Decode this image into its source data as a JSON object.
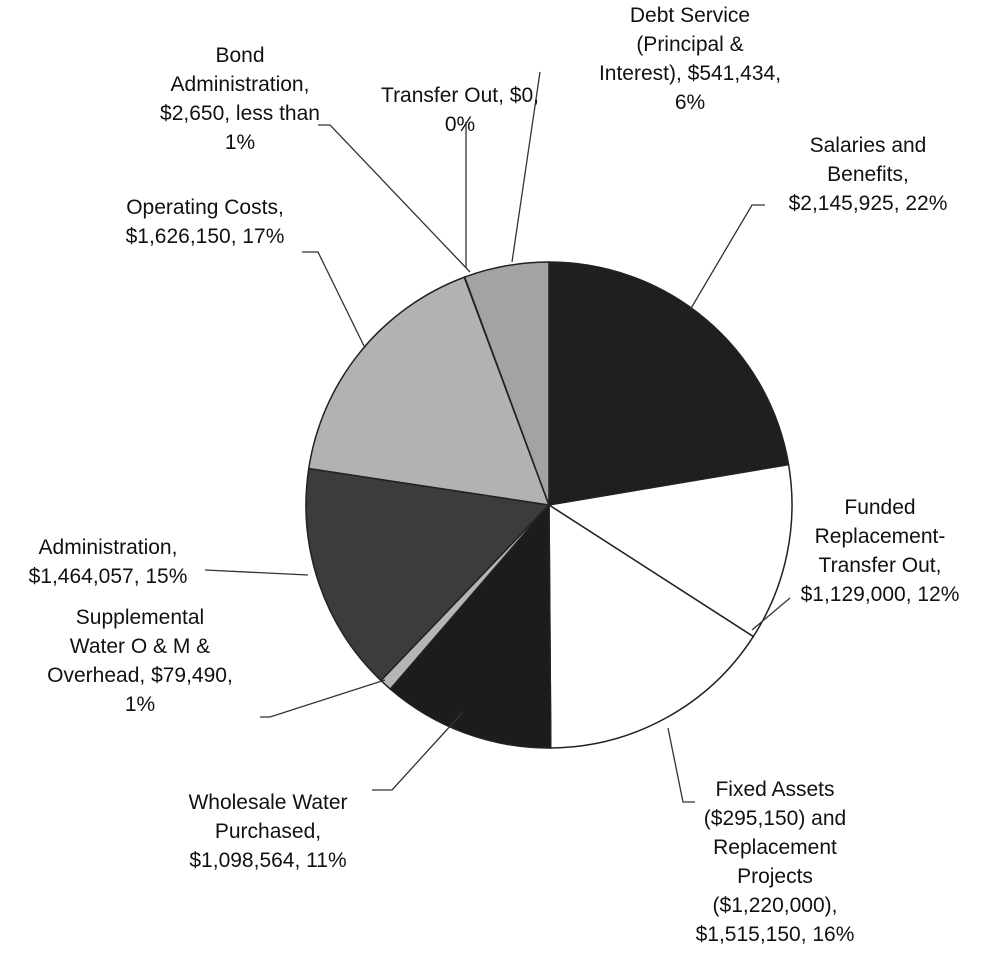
{
  "chart_data": {
    "type": "pie",
    "values": [
      2145925,
      1129000,
      1515150,
      1098564,
      79490,
      1464057,
      1626150,
      2650,
      0,
      541434
    ],
    "value_labels": [
      "Salaries and\nBenefits,\n$2,145,925, 22%",
      "Funded\nReplacement-\nTransfer Out,\n$1,129,000, 12%",
      "Fixed Assets\n($295,150)  and\nReplacement\nProjects\n($1,220,000),\n$1,515,150, 16%",
      "Wholesale Water\nPurchased,\n$1,098,564, 11%",
      "Supplemental\nWater O & M &\nOverhead, $79,490,\n1%",
      "Administration,\n$1,464,057, 15%",
      "Operating Costs,\n$1,626,150, 17%",
      "Bond\nAdministration,\n$2,650, less than\n1%",
      "Transfer Out, $0,\n0%",
      "Debt Service\n(Principal &\nInterest), $541,434,\n6%"
    ],
    "colors": [
      "#1f1f1f",
      "#ffffff",
      "#ffffff",
      "#1c1c1c",
      "#b5b5b5",
      "#3c3c3c",
      "#b2b2b2",
      "#8a8a8a",
      "#8a8a8a",
      "#a3a3a3"
    ]
  }
}
